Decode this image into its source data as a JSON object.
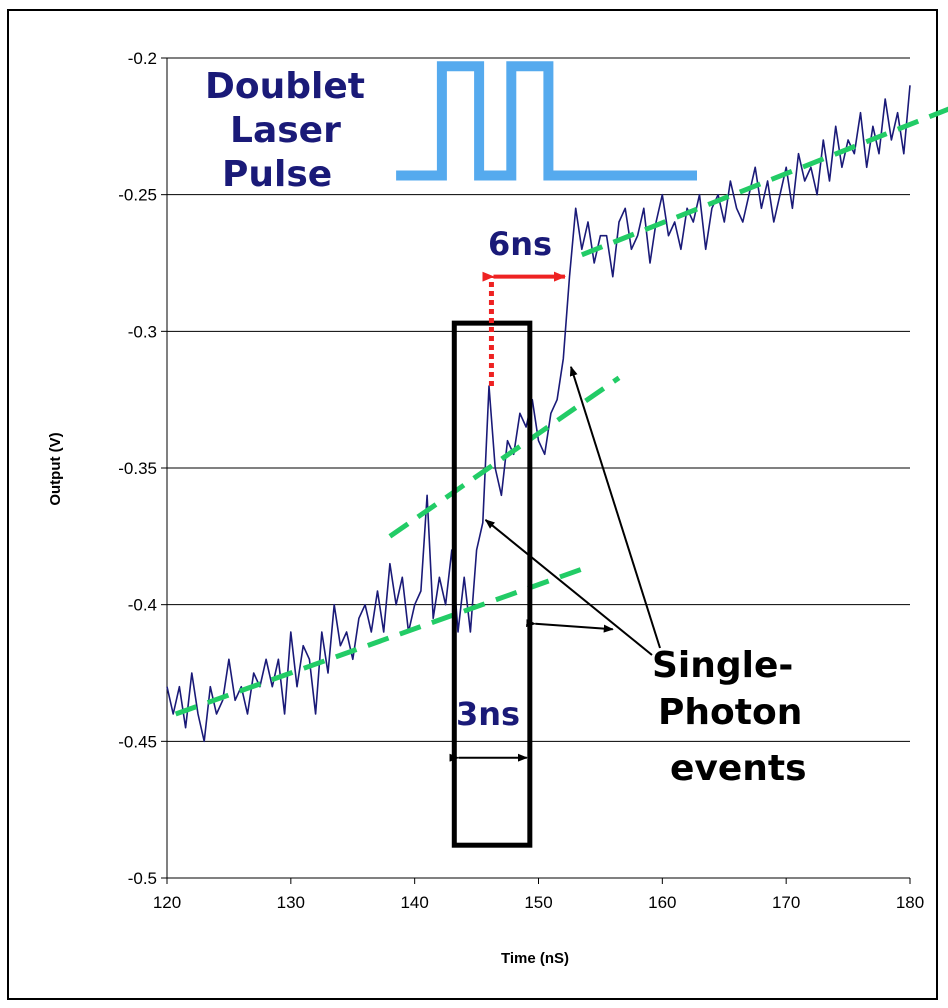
{
  "chart_data": {
    "type": "line",
    "title": "",
    "xlabel": "Time (nS)",
    "ylabel": "Output (V)",
    "xlim": [
      120,
      180
    ],
    "ylim": [
      -0.5,
      -0.2
    ],
    "xticks": [
      "120",
      "130",
      "140",
      "150",
      "160",
      "170",
      "180"
    ],
    "yticks": [
      "-0.2",
      "-0.25",
      "-0.3",
      "-0.35",
      "-0.4",
      "-0.45",
      "-0.5"
    ],
    "grid": "horizontal",
    "series_color": "#1a1a78",
    "series": [
      {
        "x": [
          120,
          120.5,
          121,
          121.5,
          122,
          122.5,
          123,
          123.5,
          124,
          124.5,
          125,
          125.5,
          126,
          126.5,
          127,
          127.5,
          128,
          128.5,
          129,
          129.5,
          130,
          130.5,
          131,
          131.5,
          132,
          132.5,
          133,
          133.5,
          134,
          134.5,
          135,
          135.5,
          136,
          136.5,
          137,
          137.5,
          138,
          138.5,
          139,
          139.5,
          140,
          140.5,
          141,
          141.5,
          142,
          142.5,
          143,
          143.5,
          144,
          144.5,
          145,
          145.5,
          146,
          146.5,
          147,
          147.5,
          148,
          148.5,
          149,
          149.5,
          150,
          150.5,
          151,
          151.5,
          152,
          152.5,
          153,
          153.5,
          154,
          154.5,
          155,
          155.5,
          156,
          156.5,
          157,
          157.5,
          158,
          158.5,
          159,
          159.5,
          160,
          160.5,
          161,
          161.5,
          162,
          162.5,
          163,
          163.5,
          164,
          164.5,
          165,
          165.5,
          166,
          166.5,
          167,
          167.5,
          168,
          168.5,
          169,
          169.5,
          170,
          170.5,
          171,
          171.5,
          172,
          172.5,
          173,
          173.5,
          174,
          174.5,
          175,
          175.5,
          176,
          176.5,
          177,
          177.5,
          178,
          178.5,
          179,
          179.5,
          180
        ],
        "y": [
          -0.43,
          -0.44,
          -0.43,
          -0.445,
          -0.425,
          -0.44,
          -0.45,
          -0.43,
          -0.44,
          -0.435,
          -0.42,
          -0.435,
          -0.43,
          -0.44,
          -0.425,
          -0.43,
          -0.42,
          -0.43,
          -0.42,
          -0.44,
          -0.41,
          -0.43,
          -0.415,
          -0.42,
          -0.44,
          -0.41,
          -0.425,
          -0.4,
          -0.415,
          -0.41,
          -0.42,
          -0.405,
          -0.4,
          -0.41,
          -0.395,
          -0.41,
          -0.385,
          -0.4,
          -0.39,
          -0.41,
          -0.4,
          -0.395,
          -0.36,
          -0.405,
          -0.39,
          -0.4,
          -0.38,
          -0.41,
          -0.39,
          -0.41,
          -0.38,
          -0.37,
          -0.32,
          -0.35,
          -0.36,
          -0.34,
          -0.345,
          -0.33,
          -0.335,
          -0.325,
          -0.34,
          -0.345,
          -0.33,
          -0.325,
          -0.31,
          -0.28,
          -0.255,
          -0.27,
          -0.26,
          -0.275,
          -0.265,
          -0.265,
          -0.28,
          -0.26,
          -0.255,
          -0.27,
          -0.265,
          -0.255,
          -0.275,
          -0.26,
          -0.25,
          -0.265,
          -0.26,
          -0.27,
          -0.255,
          -0.26,
          -0.25,
          -0.27,
          -0.255,
          -0.25,
          -0.26,
          -0.245,
          -0.255,
          -0.26,
          -0.25,
          -0.24,
          -0.255,
          -0.245,
          -0.26,
          -0.25,
          -0.24,
          -0.255,
          -0.235,
          -0.245,
          -0.24,
          -0.25,
          -0.23,
          -0.245,
          -0.225,
          -0.24,
          -0.23,
          -0.235,
          -0.22,
          -0.24,
          -0.225,
          -0.235,
          -0.215,
          -0.23,
          -0.22,
          -0.235,
          -0.21
        ]
      }
    ],
    "pulse": {
      "color": "#55aaee",
      "x": [
        138.5,
        142.2,
        142.2,
        145.2,
        145.2,
        147.8,
        147.8,
        150.8,
        150.8,
        162.8
      ],
      "y": [
        -0.243,
        -0.243,
        -0.203,
        -0.203,
        -0.243,
        -0.243,
        -0.203,
        -0.203,
        -0.243,
        -0.243
      ]
    },
    "fit_lines": {
      "color": "#22cc66",
      "lines": [
        {
          "x": [
            120.7,
            153.5
          ],
          "y": [
            -0.44,
            -0.387
          ]
        },
        {
          "x": [
            138.0,
            156.5
          ],
          "y": [
            -0.375,
            -0.317
          ]
        },
        {
          "x": [
            153.5,
            183.5
          ],
          "y": [
            -0.272,
            -0.218
          ]
        }
      ]
    },
    "annotations": {
      "pulse_label": [
        "Doublet",
        "Laser",
        "Pulse"
      ],
      "events_label": [
        "Single-",
        "Photon",
        "events"
      ],
      "gap_6ns": "6ns",
      "gap_3ns": "3ns"
    },
    "colors": {
      "annotation_text": "#1a1a78",
      "arrow_6ns": "#ee2222",
      "box": "#000000"
    }
  }
}
